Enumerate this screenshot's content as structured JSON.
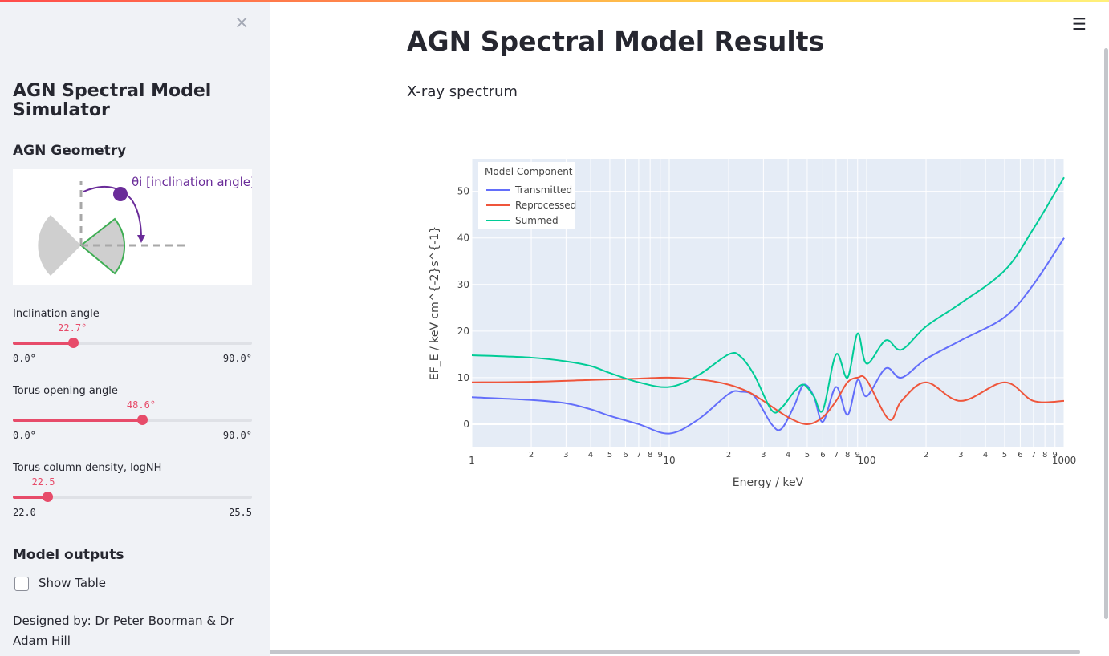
{
  "sidebar": {
    "close_glyph": "×",
    "title": "AGN Spectral Model Simulator",
    "geometry_heading": "AGN Geometry",
    "geometry_diagram_label": "θi [inclination angle]",
    "sliders": [
      {
        "label": "Inclination angle",
        "value": "22.7°",
        "value_num": 22.7,
        "min": "0.0°",
        "max": "90.0°",
        "min_num": 0,
        "max_num": 90
      },
      {
        "label": "Torus opening angle",
        "value": "48.6°",
        "value_num": 48.6,
        "min": "0.0°",
        "max": "90.0°",
        "min_num": 0,
        "max_num": 90
      },
      {
        "label": "Torus column density, logNH",
        "value": "22.5",
        "value_num": 22.5,
        "min": "22.0",
        "max": "25.5",
        "min_num": 22.0,
        "max_num": 25.5
      }
    ],
    "outputs_heading": "Model outputs",
    "show_table_label": "Show Table",
    "show_table_checked": false,
    "footer": "Designed by: Dr Peter Boorman & Dr Adam Hill"
  },
  "main": {
    "title": "AGN Spectral Model Results",
    "subtitle": "X-ray spectrum",
    "menu_icon": "hamburger-icon"
  },
  "chart_data": {
    "type": "line",
    "title": "",
    "xlabel": "Energy / keV",
    "ylabel": "EF_E / keV cm^{-2}s^{-1}",
    "xscale": "log",
    "xlim": [
      1,
      1000
    ],
    "ylim": [
      -5,
      57
    ],
    "grid": true,
    "legend_title": "Model Component",
    "legend_position": "top-left",
    "x_ticks": [
      1,
      2,
      3,
      4,
      5,
      6,
      7,
      8,
      9,
      10,
      20,
      30,
      40,
      50,
      60,
      70,
      80,
      90,
      100,
      200,
      300,
      400,
      500,
      600,
      700,
      800,
      900,
      1000
    ],
    "x_tick_labels": [
      "1",
      "2",
      "3",
      "4",
      "5",
      "6",
      "7",
      "8",
      "9",
      "10",
      "2",
      "3",
      "4",
      "5",
      "6",
      "7",
      "8",
      "9",
      "100",
      "2",
      "3",
      "4",
      "5",
      "6",
      "7",
      "8",
      "9",
      "1000"
    ],
    "y_ticks": [
      0,
      10,
      20,
      30,
      40,
      50
    ],
    "y_tick_labels": [
      "0",
      "10",
      "20",
      "30",
      "40",
      "50"
    ],
    "series": [
      {
        "name": "Transmitted",
        "color": "#636efa",
        "x": [
          1,
          2,
          3,
          4,
          5,
          7,
          10,
          14,
          20,
          23,
          27,
          33,
          37,
          43,
          48,
          54,
          60,
          70,
          80,
          90,
          100,
          125,
          150,
          200,
          300,
          500,
          700,
          1000
        ],
        "y": [
          5.8,
          5.2,
          4.5,
          3.2,
          1.8,
          0.0,
          -2.0,
          1.0,
          6.5,
          7.0,
          6.0,
          0.0,
          -1.0,
          4.0,
          8.5,
          6.0,
          0.5,
          8.0,
          2.0,
          9.5,
          6.0,
          12.0,
          10.0,
          14.0,
          18.0,
          23.0,
          30.0,
          40.0
        ]
      },
      {
        "name": "Reprocessed",
        "color": "#ef553b",
        "x": [
          1,
          2,
          4,
          7,
          10,
          15,
          20,
          25,
          30,
          40,
          50,
          60,
          70,
          80,
          90,
          100,
          130,
          150,
          200,
          300,
          500,
          700,
          1000
        ],
        "y": [
          9.0,
          9.1,
          9.5,
          9.8,
          10.0,
          9.5,
          8.5,
          7.0,
          5.0,
          1.5,
          0.0,
          1.5,
          5.0,
          9.0,
          10.0,
          9.5,
          1.0,
          5.0,
          9.0,
          5.0,
          9.0,
          5.0,
          5.0
        ]
      },
      {
        "name": "Summed",
        "color": "#00cc96",
        "x": [
          1,
          2,
          3,
          4,
          5,
          7,
          10,
          14,
          20,
          23,
          27,
          33,
          37,
          43,
          48,
          54,
          60,
          70,
          80,
          90,
          100,
          125,
          150,
          200,
          300,
          500,
          700,
          1000
        ],
        "y": [
          14.8,
          14.3,
          13.5,
          12.5,
          11.0,
          9.0,
          8.0,
          10.5,
          15.0,
          14.5,
          10.5,
          3.0,
          3.5,
          7.0,
          8.5,
          6.0,
          3.0,
          15.0,
          10.0,
          19.5,
          13.0,
          18.0,
          16.0,
          21.0,
          26.0,
          33.0,
          42.0,
          53.0
        ]
      }
    ]
  },
  "colors": {
    "accent": "#e74c6a",
    "plot_bg": "#e5ecf6",
    "sidebar_bg": "#f0f2f6"
  }
}
